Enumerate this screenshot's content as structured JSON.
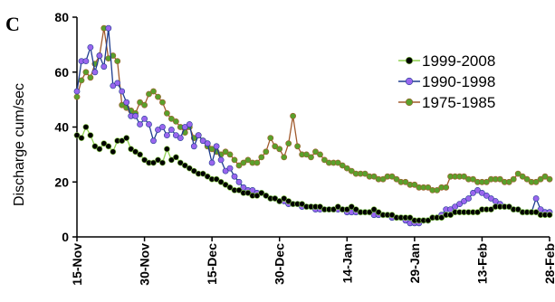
{
  "panel_label": "C",
  "chart_data": {
    "type": "line",
    "title": "",
    "xlabel": "",
    "ylabel": "Discharge cum/sec",
    "ylim": [
      0,
      80
    ],
    "yticks": [
      0,
      20,
      40,
      60,
      80
    ],
    "x_tick_labels": [
      "15-Nov",
      "30-Nov",
      "15-Dec",
      "30-Dec",
      "14-Jan",
      "29-Jan",
      "13-Feb",
      "28-Feb"
    ],
    "x_tick_days": [
      0,
      15,
      30,
      45,
      60,
      75,
      90,
      105
    ],
    "grid": false,
    "legend_position": "top-right",
    "series": [
      {
        "name": "1999-2008",
        "line_color": "#8fd14f",
        "marker_color": "#000000",
        "values": [
          37,
          36,
          40,
          37,
          33,
          32,
          34,
          33,
          31,
          35,
          35,
          36,
          32,
          31,
          30,
          28,
          27,
          27,
          28,
          27,
          32,
          28,
          29,
          27,
          26,
          25,
          24,
          23,
          23,
          22,
          21,
          21,
          20,
          19,
          18,
          17,
          17,
          16,
          16,
          15,
          15,
          16,
          15,
          14,
          14,
          13,
          14,
          13,
          12,
          12,
          12,
          11,
          11,
          11,
          11,
          10,
          10,
          10,
          11,
          10,
          10,
          11,
          10,
          9,
          9,
          9,
          10,
          9,
          8,
          8,
          8,
          7,
          7,
          7,
          7,
          6,
          6,
          6,
          6,
          7,
          7,
          7,
          8,
          8,
          9,
          9,
          9,
          9,
          9,
          9,
          10,
          10,
          10,
          11,
          11,
          11,
          11,
          10,
          10,
          9,
          9,
          9,
          9,
          8,
          8,
          8
        ]
      },
      {
        "name": "1990-1998",
        "line_color": "#1f3d8f",
        "marker_color": "#9966ee",
        "values": [
          53,
          64,
          64,
          69,
          60,
          66,
          62,
          76,
          55,
          56,
          53,
          49,
          44,
          44,
          41,
          43,
          41,
          35,
          39,
          40,
          37,
          39,
          37,
          36,
          40,
          41,
          33,
          37,
          35,
          34,
          27,
          33,
          28,
          24,
          25,
          22,
          20,
          18,
          17,
          17,
          16,
          16,
          15,
          14,
          14,
          13,
          13,
          12,
          12,
          12,
          11,
          11,
          11,
          10,
          10,
          10,
          10,
          10,
          10,
          10,
          9,
          9,
          9,
          9,
          9,
          9,
          8,
          8,
          8,
          8,
          7,
          7,
          7,
          6,
          5,
          5,
          5,
          6,
          6,
          7,
          7,
          8,
          10,
          10,
          11,
          12,
          13,
          14,
          16,
          17,
          16,
          15,
          14,
          13,
          12,
          11,
          11,
          10,
          10,
          9,
          9,
          9,
          14,
          10,
          9,
          9
        ]
      },
      {
        "name": "1975-1985",
        "line_color": "#a05a2c",
        "marker_color": "#5aa02c",
        "values": [
          51,
          57,
          60,
          58,
          63,
          66,
          76,
          65,
          66,
          64,
          48,
          47,
          46,
          45,
          49,
          48,
          52,
          53,
          51,
          49,
          45,
          43,
          42,
          40,
          38,
          40,
          36,
          37,
          35,
          33,
          32,
          31,
          30,
          31,
          30,
          28,
          26,
          27,
          28,
          27,
          27,
          29,
          31,
          36,
          33,
          32,
          29,
          34,
          44,
          33,
          30,
          30,
          29,
          31,
          30,
          28,
          27,
          27,
          27,
          26,
          25,
          24,
          23,
          23,
          23,
          22,
          22,
          21,
          21,
          22,
          22,
          21,
          20,
          20,
          19,
          19,
          18,
          18,
          18,
          17,
          17,
          18,
          18,
          22,
          22,
          22,
          22,
          21,
          21,
          20,
          20,
          20,
          21,
          21,
          21,
          20,
          20,
          21,
          23,
          22,
          21,
          20,
          20,
          21,
          22,
          21
        ]
      }
    ]
  }
}
